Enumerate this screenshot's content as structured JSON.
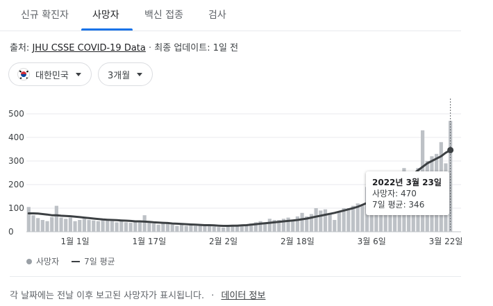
{
  "tabs": [
    {
      "label": "신규 확진자",
      "active": false
    },
    {
      "label": "사망자",
      "active": true
    },
    {
      "label": "백신 접종",
      "active": false
    },
    {
      "label": "검사",
      "active": false
    }
  ],
  "source": {
    "prefix": "출처:",
    "link": "JHU CSSE COVID-19 Data",
    "separator": "·",
    "updated": "최종 업데이트: 1일 전"
  },
  "filters": {
    "country": {
      "label": "대한민국",
      "icon": "south-korea-flag-icon"
    },
    "period": {
      "label": "3개월"
    }
  },
  "chart_data": {
    "type": "bar",
    "ylim": [
      0,
      500
    ],
    "yticks": [
      0,
      100,
      200,
      300,
      400,
      500
    ],
    "xtick_labels": [
      "1월 1일",
      "1월 17일",
      "2월 2일",
      "2월 18일",
      "3월 6일",
      "3월 22일"
    ],
    "xtick_index": [
      10,
      26,
      42,
      58,
      74,
      90
    ],
    "grid": true,
    "bar_color": "#bdc1c6",
    "line_color": "#3c4043",
    "series": [
      {
        "name": "사망자",
        "values": [
          105,
          70,
          58,
          50,
          45,
          62,
          110,
          60,
          55,
          60,
          45,
          50,
          55,
          50,
          48,
          45,
          55,
          50,
          45,
          40,
          50,
          40,
          38,
          45,
          40,
          70,
          45,
          35,
          30,
          35,
          40,
          30,
          25,
          30,
          25,
          30,
          25,
          28,
          30,
          25,
          22,
          20,
          18,
          25,
          22,
          30,
          25,
          30,
          35,
          40,
          45,
          40,
          55,
          50,
          50,
          55,
          60,
          50,
          65,
          80,
          65,
          75,
          100,
          90,
          95,
          80,
          50,
          85,
          100,
          100,
          110,
          120,
          110,
          190,
          215,
          150,
          90,
          180,
          200,
          250,
          240,
          270,
          230,
          220,
          270,
          430,
          300,
          320,
          330,
          380,
          290,
          470
        ]
      },
      {
        "name": "7일 평균",
        "values": [
          78,
          78,
          77,
          75,
          73,
          70,
          70,
          68,
          67,
          66,
          64,
          62,
          60,
          58,
          56,
          54,
          52,
          51,
          50,
          49,
          48,
          47,
          46,
          44,
          44,
          43,
          42,
          40,
          39,
          38,
          37,
          35,
          34,
          33,
          32,
          31,
          30,
          29,
          28,
          28,
          27,
          26,
          25,
          25,
          26,
          26,
          27,
          28,
          30,
          32,
          34,
          36,
          38,
          40,
          42,
          44,
          46,
          48,
          50,
          53,
          56,
          60,
          64,
          68,
          72,
          76,
          80,
          85,
          90,
          95,
          100,
          106,
          114,
          122,
          135,
          145,
          155,
          165,
          175,
          185,
          200,
          215,
          230,
          245,
          260,
          275,
          290,
          300,
          310,
          320,
          335,
          346
        ]
      }
    ],
    "highlight_index": 91
  },
  "tooltip": {
    "date": "2022년 3월 23일",
    "deaths": "사망자: 470",
    "average": "7일 평균: 346"
  },
  "legend": {
    "bars_label": "사망자",
    "line_label": "7일 평균"
  },
  "footer": {
    "text": "각 날짜에는 전날 이후 보고된 사망자가 표시됩니다.",
    "separator": "·",
    "link": "데이터 정보"
  },
  "colors": {
    "accent": "#1a73e8",
    "bar": "#bdc1c6",
    "line": "#3c4043"
  }
}
